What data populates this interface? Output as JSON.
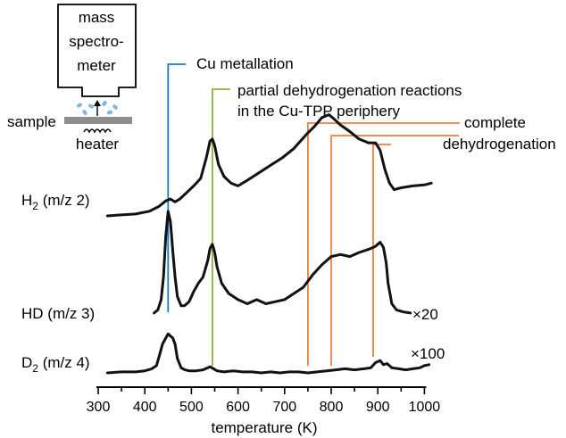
{
  "inset": {
    "instrument_label": [
      "mass",
      "spectro-",
      "meter"
    ],
    "sample_label": "sample",
    "heater_label": "heater"
  },
  "annotations": {
    "cu_metallation": {
      "text": "Cu metallation",
      "color": "#1a78c2",
      "x": 450
    },
    "partial_dehydrogenation": {
      "text": [
        "partial dehydrogenation reactions",
        "in the Cu-TPP periphery"
      ],
      "color": "#8db13a",
      "x": 545
    },
    "complete_dehydrogenation": {
      "text": [
        "complete",
        "dehydrogenation"
      ],
      "color": "#f07f3c",
      "x": [
        750,
        800,
        890
      ]
    }
  },
  "chart_data": {
    "type": "line",
    "xlabel": "temperature (K)",
    "xlim": [
      300,
      1000
    ],
    "xticks": [
      300,
      400,
      500,
      600,
      700,
      800,
      900,
      1000
    ],
    "ylabel": "",
    "series": [
      {
        "name": "H2 (m/z 2)",
        "name_main": "H",
        "name_sub": "2",
        "name_rest": "(m/z 2)",
        "multiplier": "",
        "x": [
          320,
          350,
          380,
          410,
          430,
          445,
          455,
          465,
          475,
          490,
          505,
          520,
          532,
          540,
          545,
          550,
          558,
          570,
          585,
          600,
          620,
          645,
          670,
          695,
          720,
          745,
          765,
          780,
          795,
          805,
          820,
          840,
          860,
          880,
          895,
          905,
          915,
          925,
          935,
          950,
          975,
          1000,
          1015
        ],
        "y": [
          0,
          1,
          2,
          5,
          10,
          16,
          18,
          15,
          18,
          25,
          32,
          40,
          62,
          80,
          82,
          75,
          55,
          42,
          35,
          32,
          38,
          46,
          54,
          62,
          72,
          86,
          96,
          105,
          108,
          104,
          97,
          90,
          82,
          78,
          78,
          70,
          50,
          35,
          28,
          30,
          32,
          33,
          35
        ]
      },
      {
        "name": "HD (m/z 3)",
        "name_main": "HD",
        "name_sub": "",
        "name_rest": "(m/z 3)",
        "multiplier": "×20",
        "x": [
          420,
          428,
          435,
          440,
          445,
          450,
          455,
          460,
          465,
          470,
          478,
          485,
          495,
          505,
          515,
          525,
          535,
          540,
          545,
          550,
          555,
          565,
          580,
          600,
          620,
          640,
          660,
          680,
          700,
          720,
          740,
          760,
          780,
          800,
          820,
          840,
          860,
          880,
          895,
          905,
          912,
          918,
          922,
          930,
          940,
          955,
          970
        ],
        "y": [
          1,
          4,
          14,
          36,
          76,
          100,
          90,
          62,
          36,
          17,
          8,
          8,
          12,
          22,
          30,
          36,
          52,
          64,
          68,
          60,
          46,
          30,
          20,
          14,
          10,
          14,
          10,
          12,
          14,
          20,
          26,
          38,
          48,
          56,
          58,
          56,
          60,
          63,
          66,
          70,
          65,
          50,
          30,
          10,
          4,
          2,
          1
        ]
      },
      {
        "name": "D2 (m/z 4)",
        "name_main": "D",
        "name_sub": "2",
        "name_rest": "(m/z 4)",
        "multiplier": "×100",
        "x": [
          320,
          350,
          380,
          400,
          415,
          425,
          432,
          438,
          445,
          450,
          455,
          460,
          465,
          470,
          478,
          486,
          495,
          510,
          525,
          540,
          555,
          570,
          590,
          610,
          630,
          650,
          670,
          690,
          710,
          730,
          750,
          770,
          790,
          810,
          830,
          850,
          870,
          885,
          895,
          905,
          912,
          920,
          930,
          945,
          960,
          975,
          990,
          1000,
          1010
        ],
        "y": [
          0,
          1,
          1,
          2,
          4,
          7,
          18,
          28,
          34,
          38,
          36,
          34,
          28,
          14,
          5,
          3,
          2,
          2,
          3,
          6,
          2,
          1,
          2,
          1,
          1,
          0,
          1,
          0,
          1,
          1,
          0,
          1,
          2,
          3,
          4,
          3,
          4,
          5,
          10,
          12,
          8,
          9,
          5,
          4,
          3,
          4,
          5,
          7,
          8
        ]
      }
    ]
  }
}
